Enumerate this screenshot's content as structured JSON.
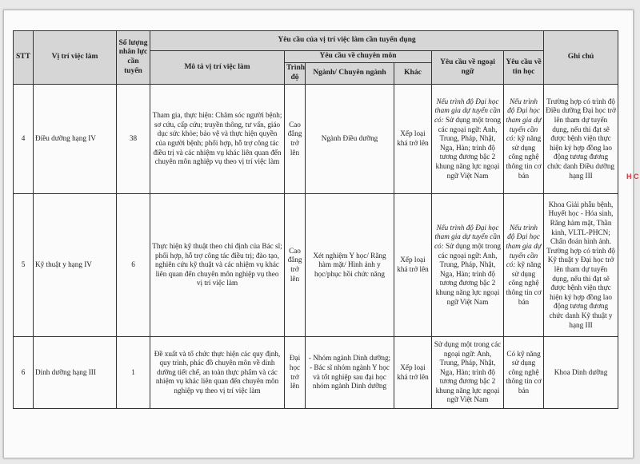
{
  "header": {
    "stt": "STT",
    "position": "Vị trí việc làm",
    "quantity": "Số lượng nhân lực cần tuyển",
    "requirements": "Yêu cầu của vị trí việc làm cần tuyển dụng",
    "description": "Mô tả vị trí việc làm",
    "professional": "Yêu cầu về chuyên môn",
    "level": "Trình độ",
    "major": "Ngành/ Chuyên ngành",
    "other": "Khác",
    "language": "Yêu cầu về ngoại ngữ",
    "it": "Yêu cầu về tin học",
    "note": "Ghi chú"
  },
  "rows": [
    {
      "stt": "4",
      "position": "Điều dưỡng hạng IV",
      "quantity": "38",
      "description": "Tham gia, thực hiện: Chăm sóc người bệnh; sơ cứu, cấp cứu; truyền thông, tư vấn, giáo dục sức khỏe; bảo vệ và thực hiện quyền của người bệnh; phối hợp, hỗ trợ công tác điều trị và các nhiệm vụ khác liên quan đến chuyên môn nghiệp vụ theo vị trí việc làm",
      "level": "Cao đẳng trở lên",
      "major": "Ngành Điều dưỡng",
      "other": "Xếp loại khá trở lên",
      "language_prefix": "Nếu trình độ Đại học tham gia dự tuyển cần có:",
      "language": " Sử dụng một trong các ngoại ngữ: Anh, Trung, Pháp, Nhật, Nga, Hàn; trình độ tương đương bậc 2 khung năng lực ngoại ngữ Việt Nam",
      "it_prefix": "Nếu trình độ Đại học tham gia dự tuyển cần có:",
      "it": " kỹ năng sử dụng công nghệ thông tin cơ bản",
      "note": "Trường hợp có trình độ Điều dưỡng Đại học trở lên tham dự tuyển dụng, nếu thi đạt sẽ được bệnh viện thực hiện ký hợp đồng lao động tương đương chức danh Điều dưỡng hạng III"
    },
    {
      "stt": "5",
      "position": "Kỹ thuật y hạng IV",
      "quantity": "6",
      "description": "Thực hiện kỹ thuật theo chỉ định của Bác sĩ; phối hợp, hỗ trợ công tác điều trị; đào tạo, nghiên cứu kỹ thuật và các nhiệm vụ khác liên quan đến chuyên môn nghiệp vụ theo vị trí việc làm",
      "level": "Cao đẳng trở lên",
      "major": "Xét nghiệm Y học/ Răng hàm mặt/ Hình ảnh y học/phục hồi chức năng",
      "other": "Xếp loại khá trở lên",
      "language_prefix": "Nếu trình độ Đại học tham gia dự tuyển cần có:",
      "language": " Sử dụng một trong các ngoại ngữ: Anh, Trung, Pháp, Nhật, Nga, Hàn; trình độ tương đương bậc 2 khung năng lực ngoại ngữ Việt Nam",
      "it_prefix": "Nếu trình độ Đại học tham gia dự tuyển cần có:",
      "it": " kỹ năng sử dụng công nghệ thông tin cơ bản",
      "note": "Khoa Giải phẫu bệnh, Huyết học - Hóa sinh, Răng hàm mặt, Thần kinh, VLTL-PHCN; Chẩn đoán hình ảnh. Trường hợp có trình độ Kỹ thuật y Đại học trở lên tham dự tuyển dụng, nếu thi đạt sẽ được bệnh viện thực hiện ký hợp đồng lao động tương đương chức danh Kỹ thuật y hạng III"
    },
    {
      "stt": "6",
      "position": "Dinh dưỡng hạng III",
      "quantity": "1",
      "description": "Đề xuất và tổ chức thực hiện các quy định, quy trình, phác đồ chuyên môn về dinh dưỡng tiết chế, an toàn thực phẩm và các nhiệm vụ khác liên quan đến chuyên môn nghiệp vụ theo vị trí việc làm",
      "level": "Đại học trở lên",
      "major": "- Nhóm ngành Dinh dưỡng; - Bác sĩ nhóm ngành Y học và tốt nghiệp sau đại học nhóm ngành Dinh dưỡng",
      "other": "Xếp loại khá trở lên",
      "language_prefix": "",
      "language": "Sử dụng một trong các ngoại ngữ: Anh, Trung, Pháp, Nhật, Nga, Hàn; trình độ tương đương bậc 2 khung năng lực ngoại ngữ Việt Nam",
      "it_prefix": "",
      "it": "Có kỹ năng sử dụng công nghệ thông tin cơ bản",
      "note": "Khoa Dinh dưỡng"
    }
  ],
  "stamp_text": "H C"
}
